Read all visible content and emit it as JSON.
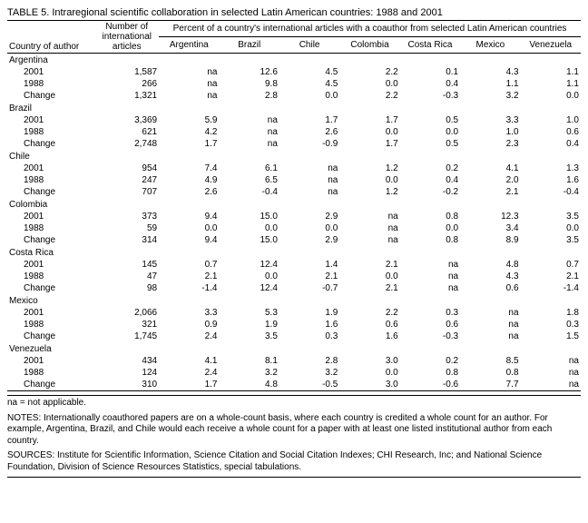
{
  "title": "TABLE 5. Intraregional scientific collaboration in selected Latin American countries: 1988 and 2001",
  "headers": {
    "author": "Country of author",
    "num_intl": "Number of international articles",
    "percent_span": "Percent of a country's international articles with a coauthor from selected Latin American countries",
    "cols": [
      "Argentina",
      "Brazil",
      "Chile",
      "Colombia",
      "Costa Rica",
      "Mexico",
      "Venezuela"
    ]
  },
  "countries": [
    {
      "name": "Argentina",
      "rows": [
        {
          "label": "2001",
          "n": "1,587",
          "v": [
            "na",
            "12.6",
            "4.5",
            "2.2",
            "0.1",
            "4.3",
            "1.1"
          ]
        },
        {
          "label": "1988",
          "n": "266",
          "v": [
            "na",
            "9.8",
            "4.5",
            "0.0",
            "0.4",
            "1.1",
            "1.1"
          ]
        },
        {
          "label": "Change",
          "n": "1,321",
          "v": [
            "na",
            "2.8",
            "0.0",
            "2.2",
            "-0.3",
            "3.2",
            "0.0"
          ]
        }
      ]
    },
    {
      "name": "Brazil",
      "rows": [
        {
          "label": "2001",
          "n": "3,369",
          "v": [
            "5.9",
            "na",
            "1.7",
            "1.7",
            "0.5",
            "3.3",
            "1.0"
          ]
        },
        {
          "label": "1988",
          "n": "621",
          "v": [
            "4.2",
            "na",
            "2.6",
            "0.0",
            "0.0",
            "1.0",
            "0.6"
          ]
        },
        {
          "label": "Change",
          "n": "2,748",
          "v": [
            "1.7",
            "na",
            "-0.9",
            "1.7",
            "0.5",
            "2.3",
            "0.4"
          ]
        }
      ]
    },
    {
      "name": "Chile",
      "rows": [
        {
          "label": "2001",
          "n": "954",
          "v": [
            "7.4",
            "6.1",
            "na",
            "1.2",
            "0.2",
            "4.1",
            "1.3"
          ]
        },
        {
          "label": "1988",
          "n": "247",
          "v": [
            "4.9",
            "6.5",
            "na",
            "0.0",
            "0.4",
            "2.0",
            "1.6"
          ]
        },
        {
          "label": "Change",
          "n": "707",
          "v": [
            "2.6",
            "-0.4",
            "na",
            "1.2",
            "-0.2",
            "2.1",
            "-0.4"
          ]
        }
      ]
    },
    {
      "name": "Colombia",
      "rows": [
        {
          "label": "2001",
          "n": "373",
          "v": [
            "9.4",
            "15.0",
            "2.9",
            "na",
            "0.8",
            "12.3",
            "3.5"
          ]
        },
        {
          "label": "1988",
          "n": "59",
          "v": [
            "0.0",
            "0.0",
            "0.0",
            "na",
            "0.0",
            "3.4",
            "0.0"
          ]
        },
        {
          "label": "Change",
          "n": "314",
          "v": [
            "9.4",
            "15.0",
            "2.9",
            "na",
            "0.8",
            "8.9",
            "3.5"
          ]
        }
      ]
    },
    {
      "name": "Costa Rica",
      "rows": [
        {
          "label": "2001",
          "n": "145",
          "v": [
            "0.7",
            "12.4",
            "1.4",
            "2.1",
            "na",
            "4.8",
            "0.7"
          ]
        },
        {
          "label": "1988",
          "n": "47",
          "v": [
            "2.1",
            "0.0",
            "2.1",
            "0.0",
            "na",
            "4.3",
            "2.1"
          ]
        },
        {
          "label": "Change",
          "n": "98",
          "v": [
            "-1.4",
            "12.4",
            "-0.7",
            "2.1",
            "na",
            "0.6",
            "-1.4"
          ]
        }
      ]
    },
    {
      "name": "Mexico",
      "rows": [
        {
          "label": "2001",
          "n": "2,066",
          "v": [
            "3.3",
            "5.3",
            "1.9",
            "2.2",
            "0.3",
            "na",
            "1.8"
          ]
        },
        {
          "label": "1988",
          "n": "321",
          "v": [
            "0.9",
            "1.9",
            "1.6",
            "0.6",
            "0.6",
            "na",
            "0.3"
          ]
        },
        {
          "label": "Change",
          "n": "1,745",
          "v": [
            "2.4",
            "3.5",
            "0.3",
            "1.6",
            "-0.3",
            "na",
            "1.5"
          ]
        }
      ]
    },
    {
      "name": "Venezuela",
      "rows": [
        {
          "label": "2001",
          "n": "434",
          "v": [
            "4.1",
            "8.1",
            "2.8",
            "3.0",
            "0.2",
            "8.5",
            "na"
          ]
        },
        {
          "label": "1988",
          "n": "124",
          "v": [
            "2.4",
            "3.2",
            "3.2",
            "0.0",
            "0.8",
            "0.8",
            "na"
          ]
        },
        {
          "label": "Change",
          "n": "310",
          "v": [
            "1.7",
            "4.8",
            "-0.5",
            "3.0",
            "-0.6",
            "7.7",
            "na"
          ]
        }
      ]
    }
  ],
  "footnote_na": "na = not applicable.",
  "notes": "NOTES:  Internationally coauthored papers are on a whole-count basis, where each country is credited a whole count for an author. For example, Argentina, Brazil, and Chile would each receive a whole count for a paper with at least one listed institutional author from each country.",
  "sources": "SOURCES:  Institute for Scientific Information, Science Citation and Social Citation Indexes; CHI Research, Inc; and National Science Foundation, Division of Science Resources Statistics, special tabulations.",
  "style": {
    "font_size_pt": 10,
    "title_font_size_pt": 11,
    "text_color": "#000000",
    "background_color": "#ffffff",
    "rule_color": "#000000"
  }
}
